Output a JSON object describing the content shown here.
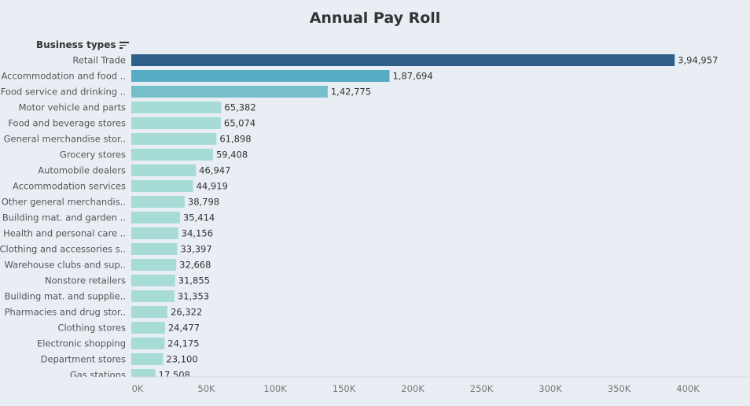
{
  "chart_data": {
    "type": "bar",
    "orientation": "horizontal",
    "title": "Annual Pay Roll",
    "category_header": "Business types",
    "categories": [
      "Retail Trade",
      "Accommodation and food ..",
      "Food service and drinking ..",
      "Motor vehicle and parts",
      "Food and beverage stores",
      "General merchandise stor..",
      "Grocery stores",
      "Automobile dealers",
      "Accommodation services",
      "Other general merchandis..",
      "Building mat. and garden ..",
      "Health and personal care ..",
      "Clothing and accessories s..",
      "Warehouse clubs and sup..",
      "Nonstore retailers",
      "Building mat. and supplie..",
      "Pharmacies and drug stor..",
      "Clothing stores",
      "Electronic shopping",
      "Department stores",
      "Gas stations"
    ],
    "values": [
      394957,
      187694,
      142775,
      65382,
      65074,
      61898,
      59408,
      46947,
      44919,
      38798,
      35414,
      34156,
      33397,
      32668,
      31855,
      31353,
      26322,
      24477,
      24175,
      23100,
      17508
    ],
    "value_labels": [
      "3,94,957",
      "1,87,694",
      "1,42,775",
      "65,382",
      "65,074",
      "61,898",
      "59,408",
      "46,947",
      "44,919",
      "38,798",
      "35,414",
      "34,156",
      "33,397",
      "32,668",
      "31,855",
      "31,353",
      "26,322",
      "24,477",
      "24,175",
      "23,100",
      "17,508"
    ],
    "x_ticks": [
      "0K",
      "50K",
      "100K",
      "150K",
      "200K",
      "250K",
      "300K",
      "350K",
      "400K"
    ],
    "xlim": [
      0,
      400000
    ],
    "grid": false,
    "colors": {
      "high": "#2d5f8a",
      "mid": "#4aa3bf",
      "low": "#a6dbd6"
    }
  }
}
